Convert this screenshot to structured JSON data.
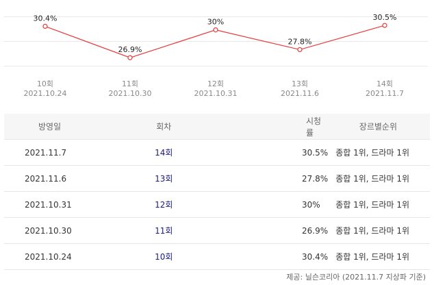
{
  "chart_data": {
    "type": "line",
    "x": [
      "10회",
      "11회",
      "12회",
      "13회",
      "14회"
    ],
    "x_dates": [
      "2021.10.24",
      "2021.10.30",
      "2021.10.31",
      "2021.11.6",
      "2021.11.7"
    ],
    "series": [
      {
        "values": [
          30.4,
          26.9,
          30.0,
          27.8,
          30.5
        ],
        "labels": [
          "30.4%",
          "26.9%",
          "30%",
          "27.8%",
          "30.5%"
        ]
      }
    ],
    "ylim": [
      26.0,
      31.5
    ],
    "grid": true,
    "colors": {
      "line": "#e83a3a",
      "point_fill": "#ffffff"
    }
  },
  "table": {
    "headers": {
      "date": "방영일",
      "episode": "회차",
      "rating": "시청률",
      "rank": "장르별순위"
    },
    "rows": [
      {
        "date": "2021.11.7",
        "episode": "14회",
        "rating": "30.5%",
        "rank": "종합 1위, 드라마 1위"
      },
      {
        "date": "2021.11.6",
        "episode": "13회",
        "rating": "27.8%",
        "rank": "종합 1위, 드라마 1위"
      },
      {
        "date": "2021.10.31",
        "episode": "12회",
        "rating": "30%",
        "rank": "종합 1위, 드라마 1위"
      },
      {
        "date": "2021.10.30",
        "episode": "11회",
        "rating": "26.9%",
        "rank": "종합 1위, 드라마 1위"
      },
      {
        "date": "2021.10.24",
        "episode": "10회",
        "rating": "30.4%",
        "rank": "종합 1위, 드라마 1위"
      }
    ]
  },
  "source_note": "제공: 닐슨코리아 (2021.11.7 지상파 기준)"
}
